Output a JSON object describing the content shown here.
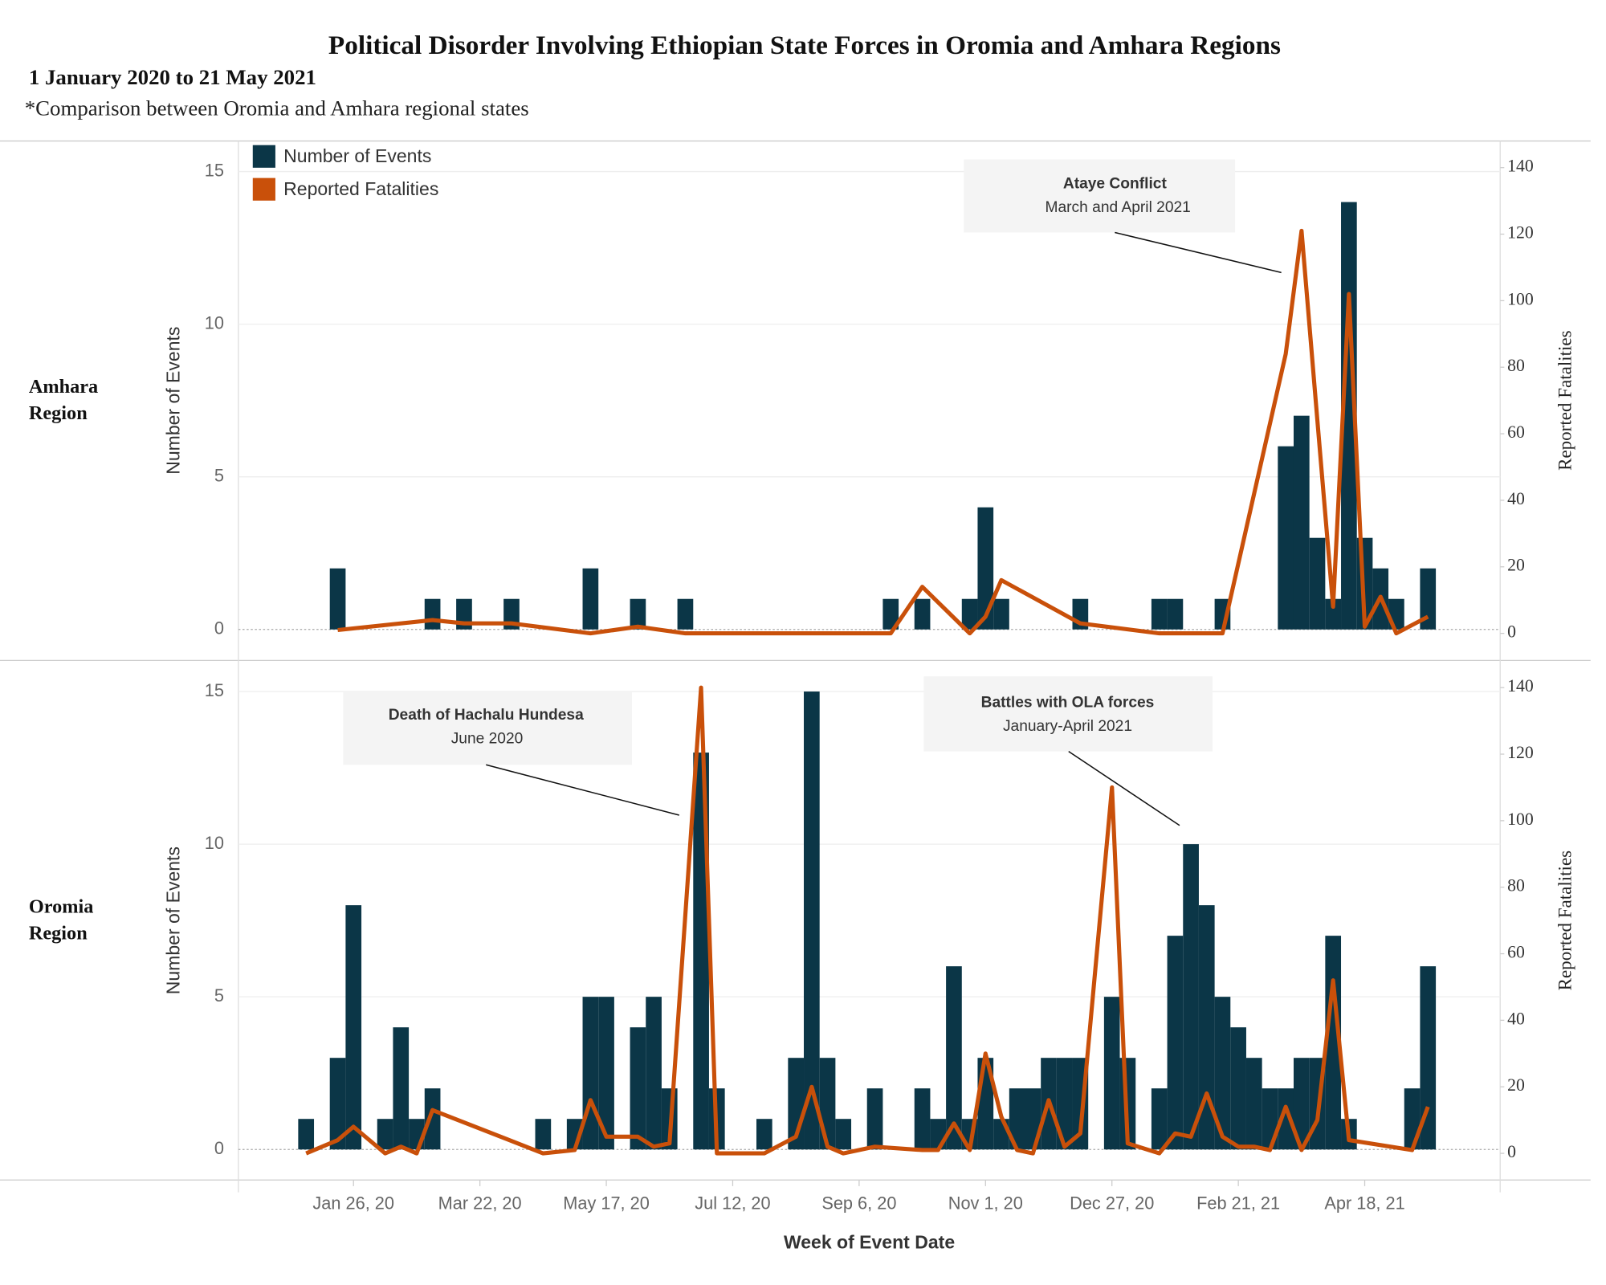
{
  "title": "Political Disorder Involving Ethiopian State Forces in Oromia and Amhara Regions",
  "subtitle": "1 January 2020 to 21 May 2021",
  "note": "*Comparison between Oromia and Amhara regional states",
  "chart_data": [
    {
      "type": "bar_line",
      "row_label": [
        "Amhara",
        "Region"
      ],
      "ylabel": "Number of Events",
      "y2label": "Reported Fatalities",
      "legend": "top-left",
      "x": [
        "Jan 19, 20",
        "Mar 1, 20",
        "Mar 15, 20",
        "Apr 5, 20",
        "May 10, 20",
        "May 31, 20",
        "Jun 21, 20",
        "Sep 20, 20",
        "Oct 4, 20",
        "Oct 25, 20",
        "Nov 1, 20",
        "Nov 8, 20",
        "Dec 13, 20",
        "Jan 17, 21",
        "Jan 24, 21",
        "Feb 14, 21",
        "Mar 14, 21",
        "Mar 21, 21",
        "Mar 28, 21",
        "Apr 4, 21",
        "Apr 11, 21",
        "Apr 18, 21",
        "Apr 25, 21",
        "May 2, 21",
        "May 16, 21"
      ],
      "series": [
        {
          "name": "Number of Events",
          "color": "#0b3647",
          "values": [
            2,
            1,
            1,
            1,
            2,
            1,
            1,
            1,
            1,
            1,
            4,
            1,
            1,
            1,
            1,
            1,
            6,
            7,
            3,
            1,
            14,
            3,
            2,
            1,
            2
          ]
        },
        {
          "name": "Reported Fatalities",
          "color": "#c9500a",
          "axis": "y2",
          "values": [
            1,
            4,
            3,
            3,
            0,
            2,
            0,
            0,
            14,
            0,
            5,
            16,
            3,
            0,
            0,
            0,
            84,
            121,
            64,
            8,
            102,
            2,
            11,
            0,
            5
          ]
        }
      ],
      "xlim": [
        "Dec 6, 19",
        "Jun 17, 21"
      ],
      "ylim": [
        -1,
        16
      ],
      "yticks": [
        0,
        5,
        10,
        15
      ],
      "y2lim": [
        -8,
        148
      ],
      "y2ticks": [
        0,
        20,
        40,
        60,
        80,
        100,
        120,
        140
      ],
      "grid": true,
      "annotations": [
        {
          "title": "Ataye Conflict",
          "text": "March and April 2021"
        }
      ]
    },
    {
      "type": "bar_line",
      "row_label": [
        "Oromia",
        "Region"
      ],
      "ylabel": "Number of Events",
      "y2label": "Reported Fatalities",
      "xlabel": "Week of Event Date",
      "x": [
        "Jan 5, 20",
        "Jan 19, 20",
        "Jan 26, 20",
        "Feb 9, 20",
        "Feb 16, 20",
        "Feb 23, 20",
        "Mar 1, 20",
        "Apr 19, 20",
        "May 3, 20",
        "May 10, 20",
        "May 17, 20",
        "May 31, 20",
        "Jun 7, 20",
        "Jun 14, 20",
        "Jun 28, 20",
        "Jul 5, 20",
        "Jul 26, 20",
        "Aug 9, 20",
        "Aug 16, 20",
        "Aug 23, 20",
        "Aug 30, 20",
        "Sep 13, 20",
        "Oct 4, 20",
        "Oct 11, 20",
        "Oct 18, 20",
        "Oct 25, 20",
        "Nov 1, 20",
        "Nov 8, 20",
        "Nov 15, 20",
        "Nov 22, 20",
        "Nov 29, 20",
        "Dec 6, 20",
        "Dec 13, 20",
        "Dec 27, 20",
        "Jan 3, 21",
        "Jan 17, 21",
        "Jan 24, 21",
        "Jan 31, 21",
        "Feb 7, 21",
        "Feb 14, 21",
        "Feb 21, 21",
        "Feb 28, 21",
        "Mar 7, 21",
        "Mar 14, 21",
        "Mar 21, 21",
        "Mar 28, 21",
        "Apr 4, 21",
        "Apr 11, 21",
        "May 9, 21",
        "May 16, 21"
      ],
      "series": [
        {
          "color": "#0b3647",
          "values": [
            1,
            3,
            8,
            1,
            4,
            1,
            2,
            1,
            1,
            5,
            5,
            4,
            5,
            2,
            13,
            2,
            1,
            3,
            15,
            3,
            1,
            2,
            2,
            1,
            6,
            1,
            3,
            1,
            2,
            2,
            3,
            3,
            3,
            5,
            3,
            2,
            7,
            10,
            8,
            5,
            4,
            3,
            2,
            2,
            3,
            3,
            7,
            1,
            2,
            6
          ]
        },
        {
          "color": "#c9500a",
          "axis": "y2",
          "values": [
            0,
            4,
            8,
            0,
            2,
            0,
            13,
            0,
            1,
            16,
            5,
            5,
            2,
            3,
            140,
            0,
            0,
            5,
            20,
            2,
            0,
            2,
            1,
            1,
            9,
            1,
            30,
            11,
            1,
            0,
            16,
            2,
            6,
            110,
            3,
            0,
            6,
            5,
            18,
            5,
            2,
            2,
            1,
            14,
            1,
            10,
            52,
            4,
            1,
            14
          ]
        }
      ],
      "xlim": [
        "Dec 6, 19",
        "Jun 17, 21"
      ],
      "xticks": [
        "Jan 26, 20",
        "Mar 22, 20",
        "May 17, 20",
        "Jul 12, 20",
        "Sep 6, 20",
        "Nov 1, 20",
        "Dec 27, 20",
        "Feb 21, 21",
        "Apr 18, 21"
      ],
      "ylim": [
        -1,
        16
      ],
      "yticks": [
        0,
        5,
        10,
        15
      ],
      "y2lim": [
        -8,
        148
      ],
      "y2ticks": [
        0,
        20,
        40,
        60,
        80,
        100,
        120,
        140
      ],
      "grid": true,
      "annotations": [
        {
          "title": "Death of Hachalu Hundesa",
          "text": "June 2020"
        },
        {
          "title": "Battles with OLA forces",
          "text": "January-April 2021"
        }
      ]
    }
  ]
}
